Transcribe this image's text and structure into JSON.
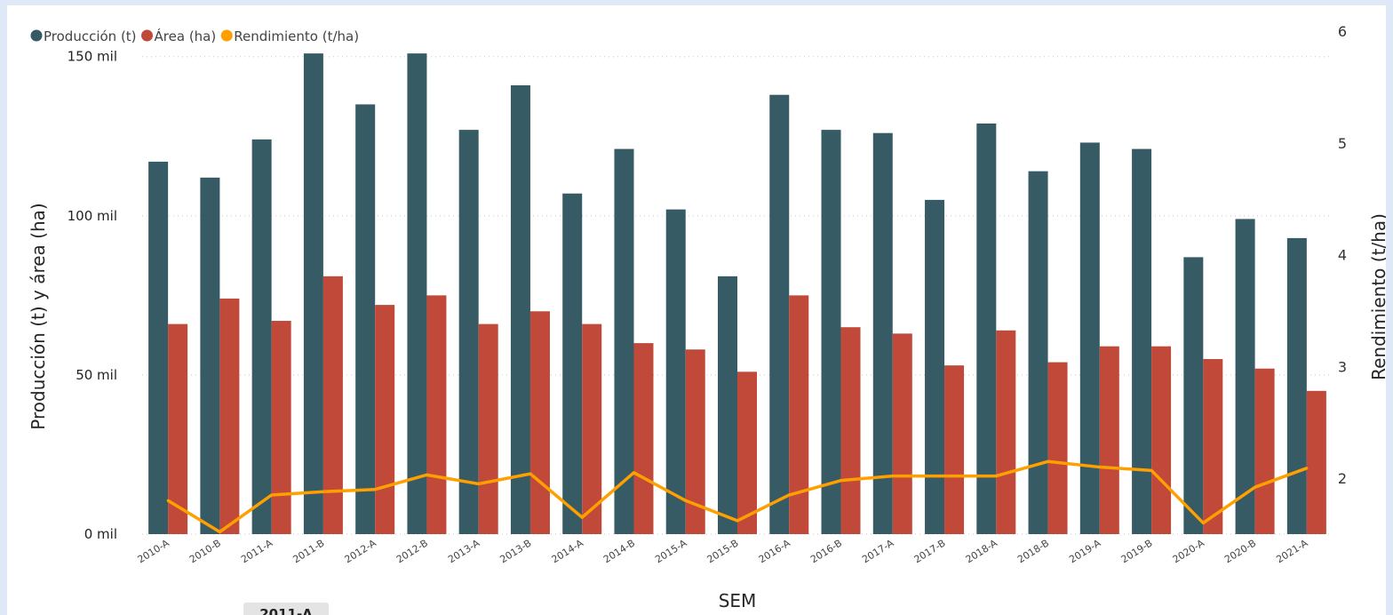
{
  "chart_data": {
    "type": "bar",
    "categories": [
      "2010-A",
      "2010-B",
      "2011-A",
      "2011-B",
      "2012-A",
      "2012-B",
      "2013-A",
      "2013-B",
      "2014-A",
      "2014-B",
      "2015-A",
      "2015-B",
      "2016-A",
      "2016-B",
      "2017-A",
      "2017-B",
      "2018-A",
      "2018-B",
      "2019-A",
      "2019-B",
      "2020-A",
      "2020-B",
      "2021-A"
    ],
    "series": [
      {
        "name": "Producción (t)",
        "type": "bar",
        "axis": "left",
        "color": "#365b65",
        "values": [
          117000,
          112000,
          124000,
          151000,
          135000,
          151000,
          127000,
          141000,
          107000,
          121000,
          102000,
          81000,
          138000,
          127000,
          126000,
          105000,
          129000,
          114000,
          123000,
          121000,
          87000,
          99000,
          93000
        ]
      },
      {
        "name": "Área (ha)",
        "type": "bar",
        "axis": "left",
        "color": "#c0493a",
        "values": [
          66000,
          74000,
          67000,
          81000,
          72000,
          75000,
          66000,
          70000,
          66000,
          60000,
          58000,
          51000,
          75000,
          65000,
          63000,
          53000,
          64000,
          54000,
          59000,
          59000,
          55000,
          52000,
          45000
        ]
      },
      {
        "name": "Rendimiento (t/ha)",
        "type": "line",
        "axis": "right",
        "color": "#ff9f00",
        "values": [
          1.8,
          1.52,
          1.85,
          1.88,
          1.9,
          2.03,
          1.95,
          2.04,
          1.65,
          2.05,
          1.8,
          1.62,
          1.85,
          1.98,
          2.02,
          2.02,
          2.02,
          2.15,
          2.1,
          2.07,
          1.6,
          1.92,
          2.09
        ]
      }
    ],
    "title": "",
    "xlabel": "SEM",
    "ylabel": "Producción (t) y área (ha)",
    "y2label": "Rendimiento (t/ha)",
    "ylim": [
      0,
      165000
    ],
    "y2lim": [
      1.5,
      6.2
    ],
    "yticks": [
      0,
      50000,
      100000,
      150000
    ],
    "yticklabels": [
      "0 mil",
      "50 mil",
      "100 mil",
      "150 mil"
    ],
    "y2ticks": [
      2,
      3,
      4,
      5,
      6
    ],
    "y2ticklabels": [
      "2",
      "3",
      "4",
      "5",
      "6"
    ],
    "grid": true,
    "legend": "top-left"
  },
  "tooltip": {
    "label": "2011-A"
  }
}
